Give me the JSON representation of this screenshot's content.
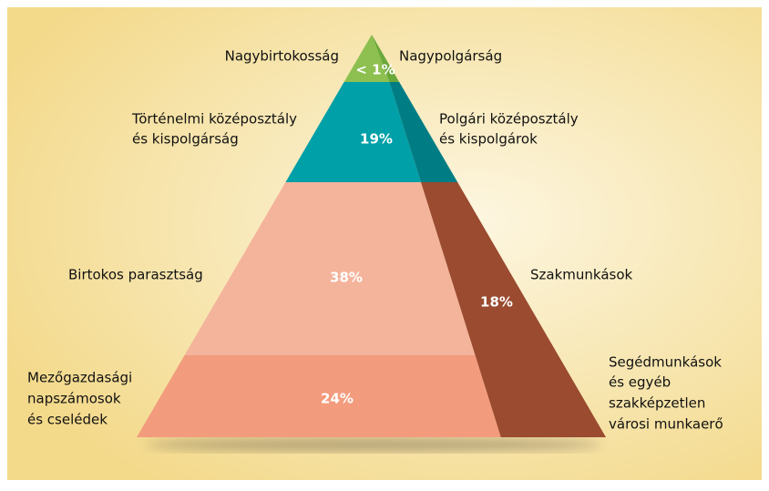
{
  "tiers": [
    {
      "left_label": [
        "Nagybirtokosság"
      ],
      "right_label": [
        "Nagypolgárság"
      ],
      "share": "< 1%"
    },
    {
      "left_label": [
        "Történelmi középosztály",
        "és kispolgárság"
      ],
      "right_label": [
        "Polgári középosztály",
        "és kispolgárok"
      ],
      "share": "19%"
    },
    {
      "left_label": [
        "Birtokos parasztság"
      ],
      "share": "38%"
    },
    {
      "left_label": [
        "Mezőgazdasági",
        "napszámosok",
        "és cselédek"
      ],
      "share": "24%"
    }
  ],
  "workers": {
    "labels": [
      [
        "Szakmunkások"
      ],
      [
        "Segédmunkások",
        "és egyéb",
        "szakképzetlen",
        "városi munkaerő"
      ]
    ],
    "share": "18%"
  }
}
